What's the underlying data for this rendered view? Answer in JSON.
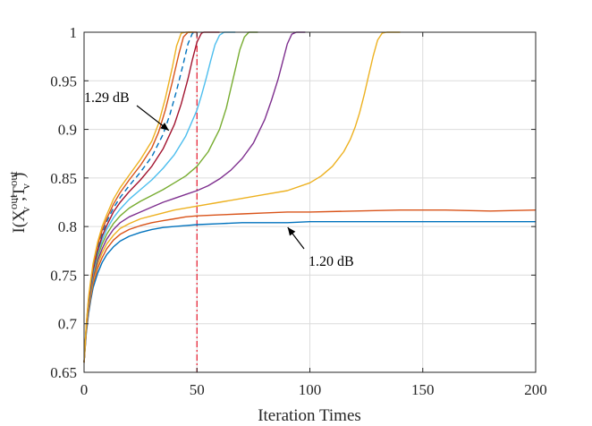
{
  "chart_data": {
    "type": "line",
    "title": "",
    "xlabel": "Iteration Times",
    "ylabel": {
      "base": "I(X",
      "sup1": "out",
      "sub1": "v",
      "mid": ";T",
      "sup2": "out",
      "sub2": "v",
      "end": ")"
    },
    "xlim": [
      0,
      200
    ],
    "ylim": [
      0.65,
      1.0
    ],
    "xticks": [
      0,
      50,
      100,
      150,
      200
    ],
    "yticks": [
      0.65,
      0.7,
      0.75,
      0.8,
      0.85,
      0.9,
      0.95,
      1
    ],
    "ytick_labels": [
      "0.65",
      "0.7",
      "0.75",
      "0.8",
      "0.85",
      "0.9",
      "0.95",
      "1"
    ],
    "grid": true,
    "annotations": [
      {
        "text": "1.29 dB",
        "point": [
          32,
          0.91
        ]
      },
      {
        "text": "1.20 dB",
        "point": [
          89,
          0.802
        ]
      }
    ],
    "reference_line": {
      "x": 50,
      "color": "#e8192c",
      "style": "dash-dot"
    },
    "series": [
      {
        "color": "#0072BD",
        "style": "solid",
        "x": [
          0,
          1,
          2,
          3,
          4,
          6,
          8,
          10,
          13,
          16,
          20,
          25,
          30,
          35,
          40,
          45,
          50,
          60,
          70,
          80,
          90,
          100,
          120,
          140,
          160,
          180,
          200
        ],
        "y": [
          0.66,
          0.69,
          0.71,
          0.725,
          0.737,
          0.752,
          0.763,
          0.771,
          0.779,
          0.785,
          0.79,
          0.794,
          0.797,
          0.799,
          0.8,
          0.801,
          0.802,
          0.803,
          0.804,
          0.804,
          0.804,
          0.805,
          0.805,
          0.805,
          0.805,
          0.805,
          0.805
        ]
      },
      {
        "color": "#D95319",
        "style": "solid",
        "x": [
          0,
          1,
          2,
          3,
          4,
          6,
          8,
          10,
          13,
          16,
          20,
          25,
          30,
          35,
          40,
          45,
          50,
          60,
          70,
          80,
          90,
          100,
          120,
          140,
          160,
          180,
          200
        ],
        "y": [
          0.66,
          0.692,
          0.713,
          0.728,
          0.741,
          0.757,
          0.768,
          0.777,
          0.786,
          0.792,
          0.797,
          0.801,
          0.804,
          0.806,
          0.808,
          0.81,
          0.811,
          0.812,
          0.813,
          0.814,
          0.815,
          0.815,
          0.816,
          0.817,
          0.817,
          0.816,
          0.817
        ]
      },
      {
        "color": "#EDB120",
        "style": "solid",
        "x": [
          0,
          1,
          2,
          3,
          4,
          6,
          8,
          10,
          13,
          16,
          20,
          25,
          30,
          35,
          40,
          50,
          60,
          70,
          80,
          90,
          100,
          105,
          110,
          115,
          118,
          120,
          122,
          124,
          126,
          128,
          130,
          132,
          134,
          136,
          140
        ],
        "y": [
          0.66,
          0.693,
          0.715,
          0.731,
          0.744,
          0.761,
          0.773,
          0.782,
          0.791,
          0.798,
          0.803,
          0.808,
          0.811,
          0.814,
          0.817,
          0.821,
          0.825,
          0.829,
          0.833,
          0.837,
          0.845,
          0.852,
          0.862,
          0.877,
          0.89,
          0.902,
          0.917,
          0.935,
          0.955,
          0.975,
          0.992,
          0.999,
          1.0,
          1.0,
          1.0
        ]
      },
      {
        "color": "#7E2F8E",
        "style": "solid",
        "x": [
          0,
          1,
          2,
          3,
          4,
          6,
          8,
          10,
          13,
          16,
          20,
          25,
          30,
          35,
          40,
          45,
          50,
          55,
          60,
          65,
          70,
          75,
          80,
          83,
          86,
          88,
          90,
          92,
          94,
          96,
          98
        ],
        "y": [
          0.66,
          0.694,
          0.717,
          0.734,
          0.747,
          0.765,
          0.777,
          0.787,
          0.797,
          0.804,
          0.81,
          0.815,
          0.82,
          0.825,
          0.829,
          0.833,
          0.837,
          0.842,
          0.849,
          0.858,
          0.87,
          0.886,
          0.91,
          0.93,
          0.952,
          0.97,
          0.988,
          0.998,
          1.0,
          1.0,
          1.0
        ]
      },
      {
        "color": "#77AC30",
        "style": "solid",
        "x": [
          0,
          1,
          2,
          3,
          4,
          6,
          8,
          10,
          13,
          16,
          20,
          25,
          30,
          35,
          40,
          45,
          50,
          55,
          60,
          63,
          65,
          67,
          69,
          71,
          73,
          75,
          77
        ],
        "y": [
          0.66,
          0.695,
          0.719,
          0.736,
          0.75,
          0.769,
          0.782,
          0.792,
          0.803,
          0.811,
          0.819,
          0.826,
          0.832,
          0.838,
          0.845,
          0.852,
          0.862,
          0.877,
          0.9,
          0.922,
          0.942,
          0.962,
          0.982,
          0.995,
          1.0,
          1.0,
          1.0
        ]
      },
      {
        "color": "#4DBEEE",
        "style": "solid",
        "x": [
          0,
          1,
          2,
          3,
          4,
          6,
          8,
          10,
          13,
          16,
          20,
          25,
          30,
          35,
          40,
          45,
          50,
          52,
          54,
          56,
          58,
          60,
          62,
          64,
          67
        ],
        "y": [
          0.66,
          0.696,
          0.72,
          0.738,
          0.752,
          0.772,
          0.786,
          0.797,
          0.809,
          0.818,
          0.828,
          0.838,
          0.848,
          0.86,
          0.874,
          0.893,
          0.92,
          0.935,
          0.952,
          0.97,
          0.987,
          0.997,
          1.0,
          1.0,
          1.0
        ]
      },
      {
        "color": "#A2142F",
        "style": "solid",
        "x": [
          0,
          1,
          2,
          3,
          4,
          6,
          8,
          10,
          13,
          16,
          20,
          25,
          30,
          35,
          40,
          43,
          46,
          48,
          50,
          52,
          53,
          55,
          57,
          60
        ],
        "y": [
          0.66,
          0.697,
          0.722,
          0.74,
          0.755,
          0.775,
          0.79,
          0.801,
          0.815,
          0.825,
          0.836,
          0.848,
          0.862,
          0.88,
          0.905,
          0.926,
          0.952,
          0.972,
          0.99,
          0.999,
          1.0,
          1.0,
          1.0,
          1.0
        ]
      },
      {
        "color": "#0072BD",
        "style": "dashed",
        "x": [
          0,
          1,
          2,
          3,
          4,
          6,
          8,
          10,
          13,
          16,
          20,
          25,
          30,
          35,
          38,
          41,
          44,
          46,
          48,
          50
        ],
        "y": [
          0.66,
          0.698,
          0.724,
          0.742,
          0.757,
          0.778,
          0.793,
          0.805,
          0.819,
          0.83,
          0.842,
          0.856,
          0.872,
          0.895,
          0.915,
          0.94,
          0.968,
          0.988,
          0.999,
          1.0
        ]
      },
      {
        "color": "#D95319",
        "style": "solid",
        "x": [
          0,
          1,
          2,
          3,
          4,
          6,
          8,
          10,
          13,
          16,
          20,
          25,
          30,
          33,
          36,
          39,
          42,
          44,
          46,
          47,
          50
        ],
        "y": [
          0.66,
          0.699,
          0.725,
          0.744,
          0.759,
          0.781,
          0.796,
          0.808,
          0.823,
          0.835,
          0.848,
          0.863,
          0.881,
          0.897,
          0.92,
          0.948,
          0.978,
          0.995,
          1.0,
          1.0,
          1.0
        ]
      },
      {
        "color": "#EDB120",
        "style": "solid",
        "x": [
          0,
          1,
          2,
          3,
          4,
          6,
          8,
          10,
          13,
          16,
          20,
          25,
          30,
          33,
          36,
          39,
          41,
          43,
          45,
          48
        ],
        "y": [
          0.66,
          0.7,
          0.727,
          0.746,
          0.762,
          0.784,
          0.8,
          0.812,
          0.828,
          0.84,
          0.853,
          0.869,
          0.888,
          0.906,
          0.932,
          0.963,
          0.986,
          0.999,
          1.0,
          1.0
        ]
      }
    ]
  }
}
